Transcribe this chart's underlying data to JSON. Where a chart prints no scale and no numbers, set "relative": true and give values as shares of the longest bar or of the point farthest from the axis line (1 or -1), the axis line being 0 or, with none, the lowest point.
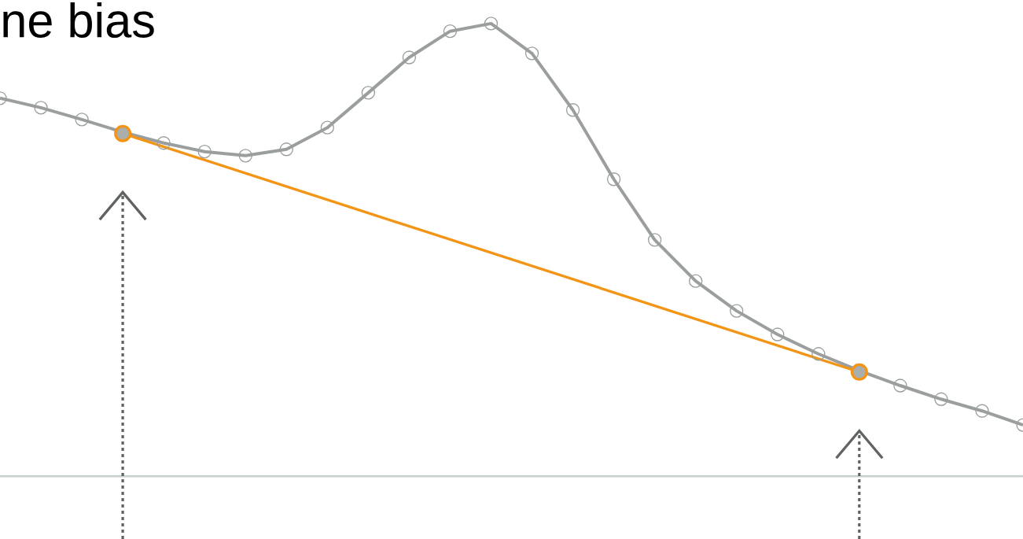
{
  "chart_data": {
    "type": "line",
    "title": "ne bias",
    "relative": true,
    "categories": [
      null,
      null,
      null,
      null,
      null,
      null,
      null,
      null,
      null,
      null,
      null,
      null,
      null,
      null,
      null,
      null,
      null,
      null,
      null,
      null,
      null,
      null,
      null,
      null,
      null,
      null
    ],
    "series": [
      {
        "color": "#9a9e9e",
        "marker": "circle",
        "values": [
          0.835,
          0.814,
          0.788,
          0.76,
          0.736,
          0.717,
          0.708,
          0.722,
          0.77,
          0.847,
          0.925,
          0.983,
          1.0,
          0.934,
          0.809,
          0.656,
          0.522,
          0.431,
          0.365,
          0.313,
          0.27,
          0.233,
          0.2,
          0.17,
          0.144,
          0.113
        ]
      },
      {
        "color": "#f39414",
        "marker": "circle",
        "values": [
          null,
          null,
          null,
          0.757,
          null,
          null,
          null,
          null,
          null,
          null,
          null,
          null,
          null,
          null,
          null,
          null,
          null,
          null,
          null,
          null,
          null,
          0.23,
          null,
          null,
          null,
          null
        ]
      }
    ]
  }
}
